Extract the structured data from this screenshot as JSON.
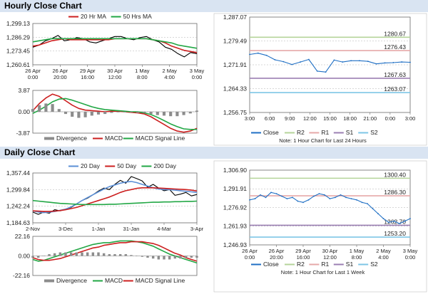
{
  "headers": {
    "hourly": "Hourly Close Chart",
    "daily": "Daily Close Chart"
  },
  "colors": {
    "price": "#000000",
    "ma20": "#cc1f1f",
    "ma50": "#22a745",
    "ma200": "#22a745",
    "ma20d": "#5b8fd6",
    "macd": "#cc1f1f",
    "signal": "#22a745",
    "hist": "#8c8c8c",
    "close": "#1f6fc4",
    "r2": "#b5d49a",
    "r1": "#e6a8a8",
    "s1": "#9b7fb3",
    "s2": "#7ec6e6",
    "grid": "#b0b0b0"
  },
  "chart_data": [
    {
      "id": "hourly-price",
      "type": "line",
      "legend": [
        {
          "key": "ma20",
          "label": "20 Hr MA"
        },
        {
          "key": "ma50",
          "label": "50 Hrs MA"
        }
      ],
      "ylim": [
        1260.61,
        1299.13
      ],
      "yticks": [
        "1,299.13",
        "1,286.29",
        "1,273.45",
        "1,260.61"
      ],
      "yvals": [
        1299.13,
        1286.29,
        1273.45,
        1260.61
      ],
      "xticks": [
        "26 Apr\n0:00",
        "26 Apr\n20:00",
        "29 Apr\n16:00",
        "30 Apr\n12:00",
        "1 May\n8:00",
        "2 May\n4:00",
        "3 May\n0:00"
      ],
      "series": [
        {
          "key": "price",
          "values": [
            1277,
            1279,
            1283,
            1285,
            1288,
            1283,
            1284,
            1286,
            1285,
            1282,
            1281,
            1283,
            1285,
            1287,
            1287,
            1285,
            1284,
            1286,
            1287,
            1284,
            1282,
            1277,
            1275,
            1271,
            1268,
            1272,
            1271
          ]
        },
        {
          "key": "ma20",
          "values": [
            1278,
            1279,
            1281,
            1283,
            1284,
            1285,
            1284,
            1284,
            1284,
            1284,
            1284,
            1284,
            1284,
            1285,
            1285,
            1285,
            1285,
            1285,
            1285,
            1284,
            1283,
            1281,
            1278,
            1276,
            1274,
            1273,
            1272
          ]
        },
        {
          "key": "ma50",
          "values": [
            1282,
            1283,
            1284,
            1285,
            1285,
            1285,
            1285,
            1285,
            1285,
            1285,
            1285,
            1285,
            1285,
            1285,
            1285,
            1285,
            1285,
            1285,
            1285,
            1284,
            1283,
            1282,
            1281,
            1279,
            1278,
            1277,
            1276
          ]
        }
      ]
    },
    {
      "id": "hourly-macd",
      "type": "line",
      "legend": [
        {
          "key": "hist",
          "label": "Divergence"
        },
        {
          "key": "macd",
          "label": "MACD"
        },
        {
          "key": "signal",
          "label": "MACD Signal Line"
        }
      ],
      "ylim": [
        -3.87,
        3.87
      ],
      "yticks": [
        "3.87",
        "0.00",
        "-3.87"
      ],
      "yvals": [
        3.87,
        0.0,
        -3.87
      ],
      "series": [
        {
          "key": "macd",
          "values": [
            0.2,
            1.5,
            2.5,
            3.2,
            2.8,
            2.0,
            1.2,
            0.6,
            0.3,
            0.2,
            0.1,
            0.0,
            0.1,
            0.1,
            0.0,
            -0.1,
            -0.2,
            -0.4,
            -0.9,
            -1.6,
            -2.3,
            -3.0,
            -3.5,
            -3.7,
            -3.5,
            -3.0
          ]
        },
        {
          "key": "signal",
          "values": [
            -0.3,
            0.3,
            1.0,
            1.8,
            2.3,
            2.4,
            2.1,
            1.7,
            1.3,
            0.9,
            0.6,
            0.4,
            0.3,
            0.2,
            0.1,
            0.0,
            0.0,
            -0.2,
            -0.5,
            -1.0,
            -1.6,
            -2.2,
            -2.7,
            -3.1,
            -3.2,
            -3.2
          ]
        },
        {
          "key": "hist",
          "values": [
            0.5,
            1.2,
            1.5,
            1.4,
            0.5,
            -0.4,
            -0.9,
            -1.1,
            -1.0,
            -0.7,
            -0.5,
            -0.4,
            -0.2,
            -0.1,
            -0.1,
            -0.1,
            -0.2,
            -0.2,
            -0.4,
            -0.6,
            -0.7,
            -0.8,
            -0.8,
            -0.6,
            -0.3,
            0.2
          ]
        }
      ]
    },
    {
      "id": "hourly-close",
      "type": "line",
      "ylim": [
        1256.75,
        1287.07
      ],
      "yticks": [
        "1,287.07",
        "1,279.49",
        "1,271.91",
        "1,264.33",
        "1,256.75"
      ],
      "yvals": [
        1287.07,
        1279.49,
        1271.91,
        1264.33,
        1256.75
      ],
      "xticks": [
        "3:00",
        "6:00",
        "9:00",
        "12:00",
        "15:00",
        "18:00",
        "21:00",
        "0:00",
        "3:00"
      ],
      "levels": [
        {
          "key": "r2",
          "value": 1280.67,
          "label": "1280.67"
        },
        {
          "key": "r1",
          "value": 1276.43,
          "label": "1276.43"
        },
        {
          "key": "s1",
          "value": 1267.63,
          "label": "1267.63"
        },
        {
          "key": "s2",
          "value": 1263.07,
          "label": "1263.07"
        }
      ],
      "series": [
        {
          "key": "close",
          "values": [
            1275.2,
            1275.6,
            1274.9,
            1273.5,
            1272.9,
            1272.0,
            1272.8,
            1273.6,
            1269.9,
            1269.6,
            1273.4,
            1272.8,
            1273.2,
            1273.2,
            1273.0,
            1272.2,
            1272.5,
            1272.6,
            1272.8,
            1272.7
          ]
        }
      ],
      "legend": [
        {
          "key": "close",
          "label": "Close"
        },
        {
          "key": "r2",
          "label": "R2"
        },
        {
          "key": "r1",
          "label": "R1"
        },
        {
          "key": "s1",
          "label": "S1"
        },
        {
          "key": "s2",
          "label": "S2"
        }
      ],
      "note": "Note: 1 Hour Chart for Last 24 Hours"
    },
    {
      "id": "daily-price",
      "type": "line",
      "legend": [
        {
          "key": "ma20d",
          "label": "20 Day"
        },
        {
          "key": "ma20",
          "label": "50 Day"
        },
        {
          "key": "ma200",
          "label": "200 Day"
        }
      ],
      "ylim": [
        1184.63,
        1357.44
      ],
      "yticks": [
        "1,357.44",
        "1,299.84",
        "1,242.24",
        "1,184.63"
      ],
      "yvals": [
        1357.44,
        1299.84,
        1242.24,
        1184.63
      ],
      "xticks": [
        "2-Nov",
        "3-Dec",
        "1-Jan",
        "31-Jan",
        "4-Mar",
        "3-Apr"
      ],
      "series": [
        {
          "key": "price",
          "values": [
            1222,
            1214,
            1222,
            1218,
            1230,
            1226,
            1232,
            1238,
            1250,
            1262,
            1270,
            1282,
            1295,
            1305,
            1300,
            1318,
            1332,
            1322,
            1345,
            1338,
            1330,
            1308,
            1318,
            1305,
            1296,
            1300,
            1280,
            1284,
            1290,
            1278,
            1283
          ]
        },
        {
          "key": "ma20d",
          "values": [
            1226,
            1222,
            1220,
            1222,
            1224,
            1228,
            1232,
            1240,
            1250,
            1262,
            1272,
            1282,
            1292,
            1302,
            1310,
            1316,
            1322,
            1326,
            1328,
            1324,
            1318,
            1312,
            1306,
            1302,
            1300,
            1300,
            1298,
            1296,
            1294,
            1292,
            1290
          ]
        },
        {
          "key": "ma20",
          "values": [
            1226,
            1225,
            1224,
            1224,
            1225,
            1227,
            1230,
            1234,
            1238,
            1244,
            1250,
            1256,
            1262,
            1268,
            1274,
            1282,
            1290,
            1296,
            1300,
            1304,
            1306,
            1306,
            1306,
            1305,
            1304,
            1303,
            1302,
            1301,
            1300,
            1298,
            1295
          ]
        },
        {
          "key": "ma200",
          "values": [
            1262,
            1260,
            1258,
            1256,
            1254,
            1252,
            1251,
            1250,
            1249,
            1248,
            1248,
            1248,
            1248,
            1248,
            1249,
            1249,
            1250,
            1251,
            1252,
            1253,
            1254,
            1255,
            1256,
            1256,
            1257,
            1257,
            1258,
            1258,
            1259,
            1259,
            1260
          ]
        }
      ]
    },
    {
      "id": "daily-macd",
      "type": "line",
      "legend": [
        {
          "key": "hist",
          "label": "Divergence"
        },
        {
          "key": "signal",
          "label": "MACD"
        },
        {
          "key": "macd",
          "label": "MACD Signal Line"
        }
      ],
      "ylim": [
        -22.16,
        22.16
      ],
      "yticks": [
        "22.16",
        "0.00",
        "-22.16"
      ],
      "yvals": [
        22.16,
        0.0,
        -22.16
      ],
      "series": [
        {
          "key": "signal",
          "values": [
            -4,
            -6,
            -5,
            -3,
            -1,
            1,
            3,
            5,
            7,
            9,
            11,
            13,
            14,
            15,
            15,
            16,
            17,
            17,
            17,
            16,
            15,
            13,
            11,
            8,
            5,
            2,
            0,
            -2,
            -4,
            -6,
            -8
          ]
        },
        {
          "key": "macd",
          "values": [
            -2,
            -4,
            -5,
            -5,
            -4,
            -3,
            -1,
            1,
            3,
            5,
            7,
            9,
            10,
            12,
            13,
            14,
            15,
            15,
            16,
            16,
            16,
            15,
            14,
            12,
            9,
            6,
            3,
            1,
            -2,
            -4,
            -6
          ]
        },
        {
          "key": "hist",
          "values": [
            -2,
            -2,
            0,
            2,
            3,
            4,
            4,
            4,
            4,
            4,
            4,
            4,
            4,
            3,
            2,
            2,
            2,
            2,
            1,
            0,
            -1,
            -2,
            -3,
            -4,
            -4,
            -4,
            -3,
            -3,
            -2,
            -2,
            -2
          ]
        }
      ]
    },
    {
      "id": "daily-close",
      "type": "line",
      "ylim": [
        1246.93,
        1306.9
      ],
      "yticks": [
        "1,306.90",
        "1,291.91",
        "1,276.92",
        "1,261.93",
        "1,246.93"
      ],
      "yvals": [
        1306.9,
        1291.91,
        1276.92,
        1261.93,
        1246.93
      ],
      "xticks": [
        "26 Apr\n0:00",
        "26 Apr\n20:00",
        "29 Apr\n16:00",
        "30 Apr\n12:00",
        "1 May\n8:00",
        "2 May\n4:00",
        "3 May\n0:00"
      ],
      "levels": [
        {
          "key": "r2",
          "value": 1300.4,
          "label": "1300.40"
        },
        {
          "key": "r1",
          "value": 1286.3,
          "label": "1286.30"
        },
        {
          "key": "s1",
          "value": 1262.7,
          "label": "1262.70"
        },
        {
          "key": "s2",
          "value": 1253.2,
          "label": "1253.20"
        }
      ],
      "series": [
        {
          "key": "close",
          "values": [
            1283,
            1284,
            1287,
            1285,
            1289,
            1288,
            1286,
            1284,
            1285,
            1282,
            1281,
            1283,
            1286,
            1288,
            1287,
            1284,
            1285,
            1287,
            1285,
            1284,
            1283,
            1281,
            1280,
            1276,
            1272,
            1268,
            1265,
            1266,
            1264,
            1266,
            1268
          ]
        }
      ],
      "legend": [
        {
          "key": "close",
          "label": "Close"
        },
        {
          "key": "r2",
          "label": "R2"
        },
        {
          "key": "r1",
          "label": "R1"
        },
        {
          "key": "s1",
          "label": "S1"
        },
        {
          "key": "s2",
          "label": "S2"
        }
      ],
      "note": "Note: 1 Hour Chart for Last 1 Week"
    }
  ]
}
